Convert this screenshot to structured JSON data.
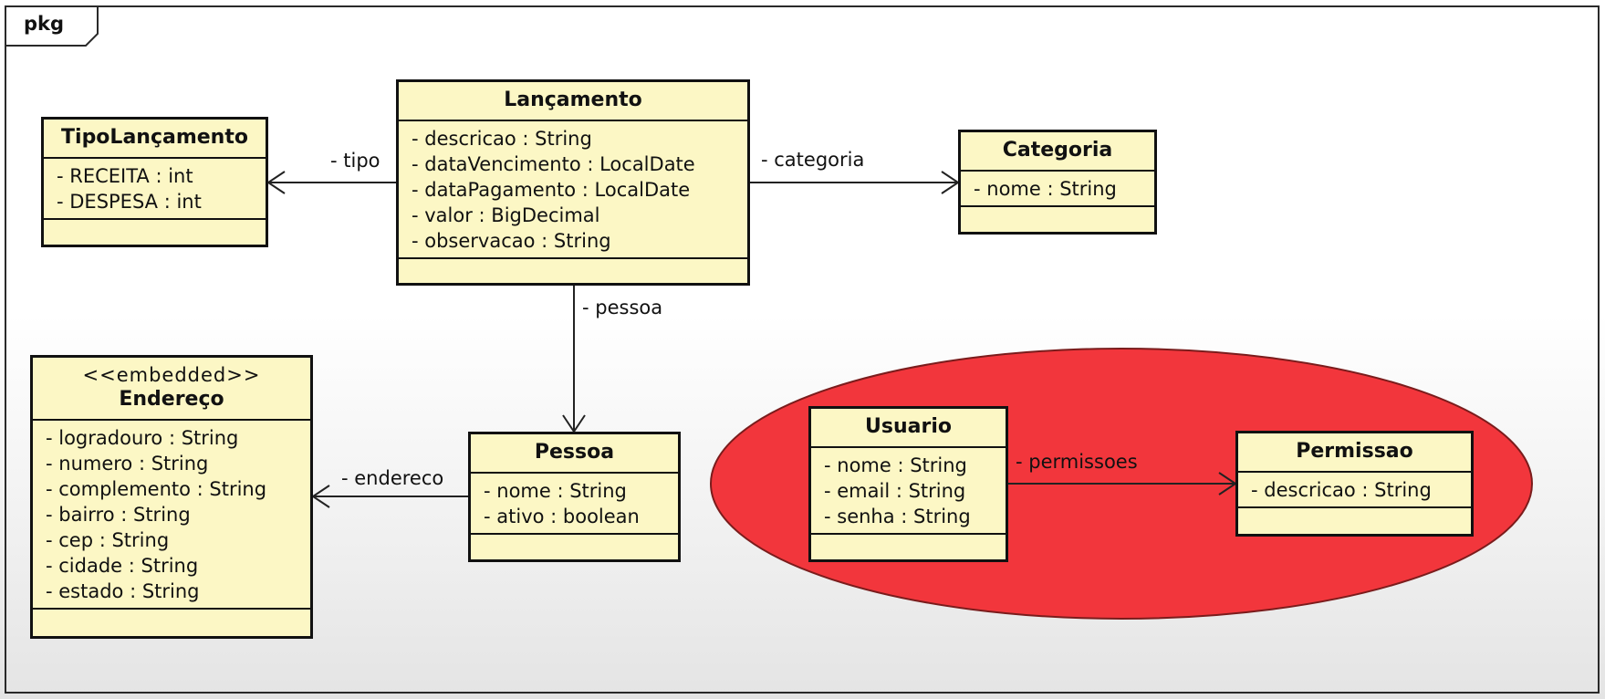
{
  "package": {
    "label": "pkg"
  },
  "colors": {
    "class_fill": "#fcf7c5",
    "class_border": "#111111",
    "ellipse_fill": "#f2363c",
    "line": "#222222"
  },
  "classes": {
    "lancamento": {
      "name": "Lançamento",
      "attributes": [
        "- descricao : String",
        "- dataVencimento : LocalDate",
        "- dataPagamento : LocalDate",
        "- valor : BigDecimal",
        "- observacao : String"
      ]
    },
    "tipo_lancamento": {
      "name": "TipoLançamento",
      "attributes": [
        "- RECEITA : int",
        "- DESPESA : int"
      ]
    },
    "categoria": {
      "name": "Categoria",
      "attributes": [
        "- nome : String"
      ]
    },
    "endereco": {
      "stereotype": "<<embedded>>",
      "name": "Endereço",
      "attributes": [
        "- logradouro : String",
        "- numero : String",
        "- complemento : String",
        "- bairro : String",
        "- cep : String",
        "- cidade : String",
        "- estado : String"
      ]
    },
    "pessoa": {
      "name": "Pessoa",
      "attributes": [
        "- nome : String",
        "- ativo : boolean"
      ]
    },
    "usuario": {
      "name": "Usuario",
      "attributes": [
        "- nome : String",
        "- email : String",
        "- senha : String"
      ]
    },
    "permissao": {
      "name": "Permissao",
      "attributes": [
        "- descricao : String"
      ]
    }
  },
  "associations": {
    "tipo": "- tipo",
    "categoria": "- categoria",
    "pessoa": "- pessoa",
    "endereco": "- endereco",
    "permissoes": "- permissoes"
  }
}
